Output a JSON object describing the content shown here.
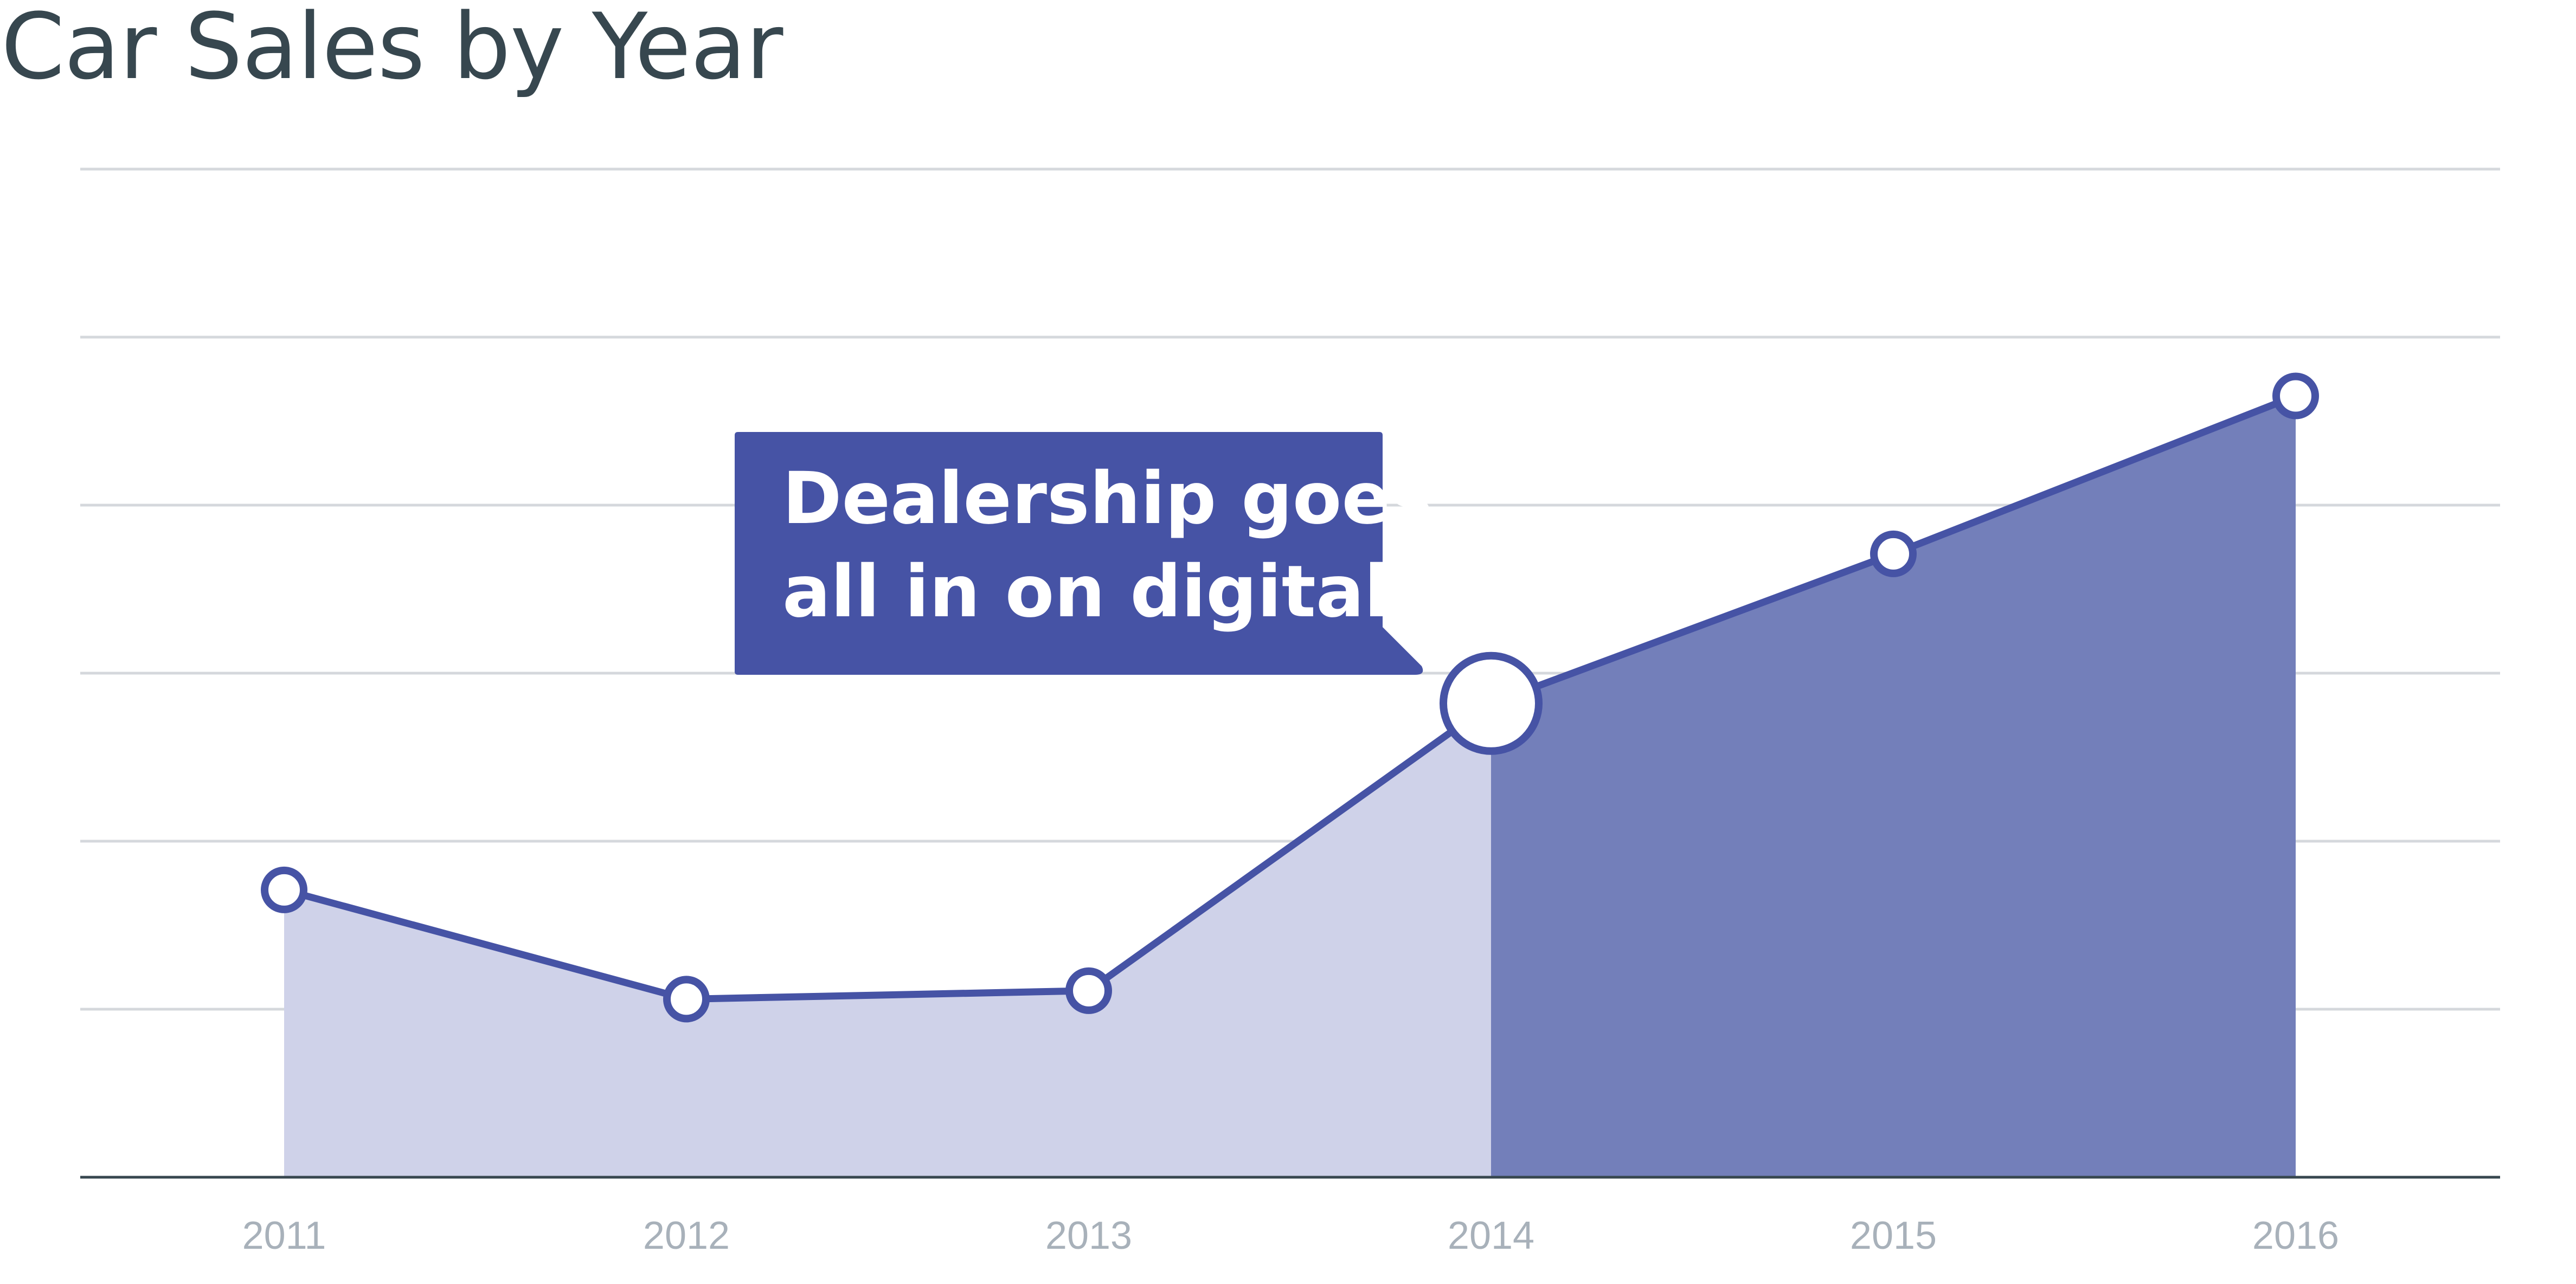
{
  "chart_data": {
    "type": "area",
    "title": "Car Sales by Year",
    "xlabel": "",
    "ylabel": "",
    "categories": [
      "2011",
      "2012",
      "2013",
      "2014",
      "2015",
      "2016"
    ],
    "series": [
      {
        "values": [
          171,
          106,
          111,
          282,
          371,
          465
        ]
      }
    ],
    "ylim": [
      0,
      600
    ],
    "grid": true,
    "annotation": {
      "text_lines": [
        "Dealership goes",
        "all in on digital"
      ],
      "target_category": "2014"
    },
    "colors": {
      "line": "#4653a5",
      "area_before": "#cfd2e9",
      "area_after": "#737fba",
      "callout": "#4653a5",
      "title": "#37474f",
      "tick_label": "#a8b1ba",
      "grid": "#d5d8dc"
    }
  }
}
